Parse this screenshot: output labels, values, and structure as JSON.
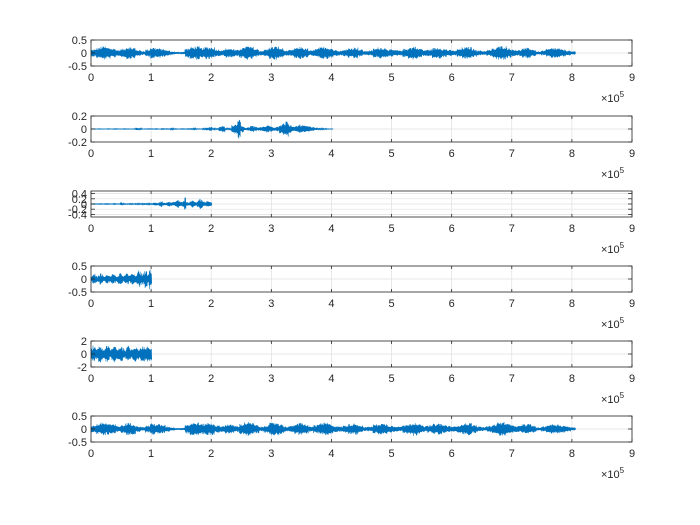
{
  "chart_data": [
    {
      "type": "line",
      "xlim": [
        0,
        900000
      ],
      "ylim": [
        -0.5,
        0.5
      ],
      "xticks": [
        0,
        1,
        2,
        3,
        4,
        5,
        6,
        7,
        8,
        9
      ],
      "xtick_labels": [
        "0",
        "1",
        "2",
        "3",
        "4",
        "5",
        "6",
        "7",
        "8",
        "9"
      ],
      "yticks": [
        0.5,
        0,
        -0.5
      ],
      "ytick_labels": [
        "0.5",
        "0",
        "-0.5"
      ],
      "x_exponent_base": "×10",
      "x_exponent": "5",
      "grid": true,
      "color": "#0072BD",
      "signal_length": 806000,
      "envelope": [
        0.14,
        0.2,
        0.26,
        0.22,
        0.18,
        0.12,
        0.16,
        0.24,
        0.21,
        0.12,
        0.08,
        0.14,
        0.22,
        0.19,
        0.16,
        0.1,
        0.06,
        0.04,
        0.05,
        0.18,
        0.24,
        0.26,
        0.2,
        0.24,
        0.23,
        0.14,
        0.12,
        0.18,
        0.17,
        0.12,
        0.2,
        0.27,
        0.24,
        0.16,
        0.09,
        0.15,
        0.24,
        0.26,
        0.19,
        0.1,
        0.12,
        0.2,
        0.24,
        0.18,
        0.1,
        0.16,
        0.22,
        0.25,
        0.2,
        0.12,
        0.1,
        0.14,
        0.2,
        0.22,
        0.14,
        0.08,
        0.1,
        0.18,
        0.22,
        0.2,
        0.14,
        0.12,
        0.1,
        0.16,
        0.22,
        0.26,
        0.18,
        0.12,
        0.14,
        0.2,
        0.22,
        0.16,
        0.12,
        0.1,
        0.16,
        0.22,
        0.24,
        0.16,
        0.1,
        0.08,
        0.12,
        0.18,
        0.26,
        0.28,
        0.2,
        0.14,
        0.12,
        0.18,
        0.2,
        0.14,
        0.06,
        0.1,
        0.16,
        0.2,
        0.18,
        0.14,
        0.1,
        0.06
      ]
    },
    {
      "type": "line",
      "xlim": [
        0,
        900000
      ],
      "ylim": [
        -0.2,
        0.2
      ],
      "xticks": [
        0,
        1,
        2,
        3,
        4,
        5,
        6,
        7,
        8,
        9
      ],
      "xtick_labels": [
        "0",
        "1",
        "2",
        "3",
        "4",
        "5",
        "6",
        "7",
        "8",
        "9"
      ],
      "yticks": [
        0.2,
        0,
        -0.2
      ],
      "ytick_labels": [
        "0.2",
        "0",
        "-0.2"
      ],
      "x_exponent_base": "×10",
      "x_exponent": "5",
      "grid": true,
      "color": "#0072BD",
      "signal_length": 403000,
      "envelope": [
        0.004,
        0.004,
        0.005,
        0.004,
        0.004,
        0.005,
        0.004,
        0.006,
        0.005,
        0.004,
        0.006,
        0.005,
        0.004,
        0.005,
        0.018,
        0.012,
        0.004,
        0.005,
        0.006,
        0.005,
        0.006,
        0.004,
        0.008,
        0.006,
        0.005,
        0.012,
        0.006,
        0.004,
        0.006,
        0.005,
        0.006,
        0.008,
        0.012,
        0.006,
        0.005,
        0.01,
        0.02,
        0.03,
        0.012,
        0.008,
        0.035,
        0.05,
        0.012,
        0.01,
        0.06,
        0.08,
        0.16,
        0.05,
        0.02,
        0.03,
        0.05,
        0.04,
        0.025,
        0.03,
        0.04,
        0.06,
        0.045,
        0.03,
        0.04,
        0.07,
        0.09,
        0.12,
        0.06,
        0.035,
        0.05,
        0.07,
        0.06,
        0.05,
        0.04,
        0.03,
        0.02,
        0.015,
        0.01,
        0.008,
        0.005,
        0.004
      ]
    },
    {
      "type": "line",
      "xlim": [
        0,
        900000
      ],
      "ylim": [
        -0.5,
        0.5
      ],
      "xticks": [
        0,
        1,
        2,
        3,
        4,
        5,
        6,
        7,
        8,
        9
      ],
      "xtick_labels": [
        "0",
        "1",
        "2",
        "3",
        "4",
        "5",
        "6",
        "7",
        "8",
        "9"
      ],
      "yticks": [
        0.4,
        0.2,
        0,
        -0.2,
        -0.4
      ],
      "ytick_labels": [
        "0.4",
        "0.2",
        "0",
        "-0.2",
        "-0.4"
      ],
      "x_exponent_base": "×10",
      "x_exponent": "5",
      "grid": true,
      "color": "#0072BD",
      "signal_length": 201000,
      "envelope": [
        0.01,
        0.012,
        0.014,
        0.012,
        0.015,
        0.014,
        0.012,
        0.015,
        0.018,
        0.016,
        0.014,
        0.012,
        0.02,
        0.016,
        0.015,
        0.014,
        0.06,
        0.03,
        0.02,
        0.015,
        0.016,
        0.02,
        0.018,
        0.016,
        0.02,
        0.025,
        0.022,
        0.02,
        0.03,
        0.04,
        0.03,
        0.025,
        0.03,
        0.04,
        0.05,
        0.06,
        0.045,
        0.08,
        0.12,
        0.06,
        0.05,
        0.06,
        0.1,
        0.08,
        0.06,
        0.08,
        0.12,
        0.15,
        0.1,
        0.08,
        0.12,
        0.25,
        0.08,
        0.06,
        0.1,
        0.15,
        0.12,
        0.08,
        0.14,
        0.2,
        0.16,
        0.1,
        0.08,
        0.12,
        0.1,
        0.08
      ]
    },
    {
      "type": "line",
      "xlim": [
        0,
        900000
      ],
      "ylim": [
        -0.5,
        0.5
      ],
      "xticks": [
        0,
        1,
        2,
        3,
        4,
        5,
        6,
        7,
        8,
        9
      ],
      "xtick_labels": [
        "0",
        "1",
        "2",
        "3",
        "4",
        "5",
        "6",
        "7",
        "8",
        "9"
      ],
      "yticks": [
        0.5,
        0,
        -0.5
      ],
      "ytick_labels": [
        "0.5",
        "0",
        "-0.5"
      ],
      "x_exponent_base": "×10",
      "x_exponent": "5",
      "grid": true,
      "color": "#0072BD",
      "signal_length": 101000,
      "envelope": [
        0.12,
        0.18,
        0.2,
        0.14,
        0.1,
        0.15,
        0.22,
        0.18,
        0.12,
        0.1,
        0.16,
        0.2,
        0.15,
        0.12,
        0.18,
        0.22,
        0.16,
        0.1,
        0.14,
        0.2,
        0.24,
        0.18,
        0.12,
        0.16,
        0.22,
        0.2,
        0.14,
        0.18,
        0.26,
        0.22,
        0.16,
        0.2,
        0.28,
        0.34,
        0.24,
        0.18,
        0.22,
        0.36,
        0.3,
        0.2,
        0.4,
        0.24
      ]
    },
    {
      "type": "line",
      "xlim": [
        0,
        900000
      ],
      "ylim": [
        -2,
        2
      ],
      "xticks": [
        0,
        1,
        2,
        3,
        4,
        5,
        6,
        7,
        8,
        9
      ],
      "xtick_labels": [
        "0",
        "1",
        "2",
        "3",
        "4",
        "5",
        "6",
        "7",
        "8",
        "9"
      ],
      "yticks": [
        2,
        0,
        -2
      ],
      "ytick_labels": [
        "2",
        "0",
        "-2"
      ],
      "x_exponent_base": "×10",
      "x_exponent": "5",
      "grid": true,
      "color": "#0072BD",
      "signal_length": 101000,
      "envelope": [
        1.0,
        1.3,
        1.1,
        0.8,
        1.0,
        1.2,
        1.3,
        1.0,
        0.7,
        0.9,
        1.2,
        1.3,
        1.1,
        0.7,
        0.9,
        1.2,
        1.3,
        1.0,
        0.8,
        1.0,
        1.3,
        1.2,
        0.9,
        0.7,
        1.0,
        1.3,
        1.2,
        0.9,
        0.8,
        1.1,
        1.3,
        1.2,
        0.9,
        0.8,
        1.1,
        1.3,
        1.2,
        0.9,
        1.0,
        1.2,
        1.1,
        1.0
      ]
    },
    {
      "type": "line",
      "xlim": [
        0,
        900000
      ],
      "ylim": [
        -0.5,
        0.5
      ],
      "xticks": [
        0,
        1,
        2,
        3,
        4,
        5,
        6,
        7,
        8,
        9
      ],
      "xtick_labels": [
        "0",
        "1",
        "2",
        "3",
        "4",
        "5",
        "6",
        "7",
        "8",
        "9"
      ],
      "yticks": [
        0.5,
        0,
        -0.5
      ],
      "ytick_labels": [
        "0.5",
        "0",
        "-0.5"
      ],
      "x_exponent_base": "×10",
      "x_exponent": "5",
      "grid": true,
      "color": "#0072BD",
      "signal_length": 806000,
      "envelope": [
        0.14,
        0.2,
        0.26,
        0.22,
        0.18,
        0.12,
        0.16,
        0.24,
        0.21,
        0.12,
        0.08,
        0.14,
        0.22,
        0.19,
        0.16,
        0.1,
        0.06,
        0.04,
        0.05,
        0.18,
        0.24,
        0.26,
        0.2,
        0.24,
        0.23,
        0.14,
        0.12,
        0.18,
        0.17,
        0.12,
        0.2,
        0.27,
        0.24,
        0.16,
        0.09,
        0.15,
        0.24,
        0.26,
        0.19,
        0.1,
        0.12,
        0.2,
        0.24,
        0.18,
        0.1,
        0.16,
        0.22,
        0.25,
        0.2,
        0.12,
        0.1,
        0.14,
        0.2,
        0.22,
        0.14,
        0.08,
        0.1,
        0.18,
        0.22,
        0.2,
        0.14,
        0.12,
        0.1,
        0.16,
        0.22,
        0.26,
        0.18,
        0.12,
        0.14,
        0.2,
        0.22,
        0.16,
        0.12,
        0.1,
        0.16,
        0.22,
        0.24,
        0.16,
        0.1,
        0.08,
        0.12,
        0.18,
        0.26,
        0.28,
        0.2,
        0.14,
        0.12,
        0.18,
        0.2,
        0.14,
        0.06,
        0.1,
        0.16,
        0.2,
        0.18,
        0.14,
        0.1,
        0.06
      ]
    }
  ]
}
